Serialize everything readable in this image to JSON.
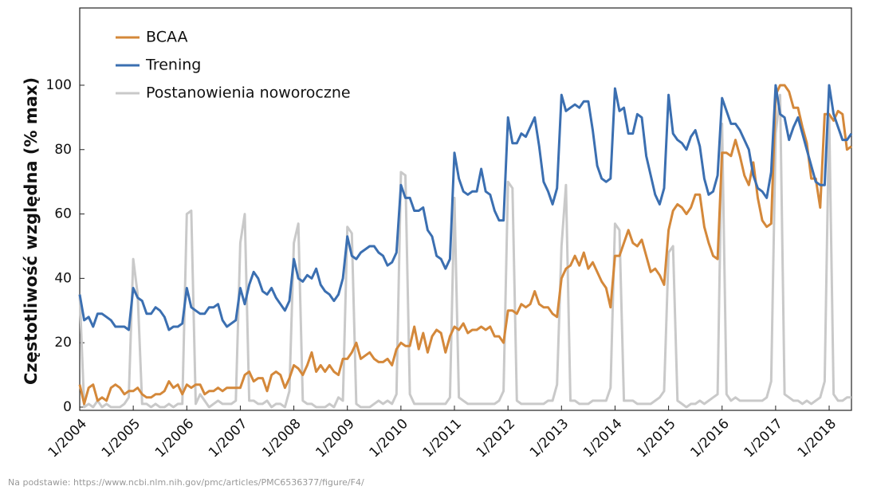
{
  "chart_data": {
    "type": "line",
    "y_label": "Częstotliwość względna (% max)",
    "source": "Na podstawie: https://www.ncbi.nlm.nih.gov/pmc/articles/PMC6536377/figure/F4/",
    "legend": "upper-left",
    "grid": false,
    "xlim": [
      "2004-01",
      "2018-06"
    ],
    "ylim": [
      -1,
      124
    ],
    "yticks": [
      0,
      20,
      40,
      60,
      80,
      100
    ],
    "xticks": [
      {
        "value": "2004-01",
        "label": "1/2004"
      },
      {
        "value": "2005-01",
        "label": "1/2005"
      },
      {
        "value": "2006-01",
        "label": "1/2006"
      },
      {
        "value": "2007-01",
        "label": "1/2007"
      },
      {
        "value": "2008-01",
        "label": "1/2008"
      },
      {
        "value": "2009-01",
        "label": "1/2009"
      },
      {
        "value": "2010-01",
        "label": "1/2010"
      },
      {
        "value": "2011-01",
        "label": "1/2011"
      },
      {
        "value": "2012-01",
        "label": "1/2012"
      },
      {
        "value": "2013-01",
        "label": "1/2013"
      },
      {
        "value": "2014-01",
        "label": "1/2014"
      },
      {
        "value": "2015-01",
        "label": "1/2015"
      },
      {
        "value": "2016-01",
        "label": "1/2016"
      },
      {
        "value": "2017-01",
        "label": "1/2017"
      },
      {
        "value": "2018-01",
        "label": "1/2018"
      }
    ],
    "x": [
      "2004-01",
      "2004-02",
      "2004-03",
      "2004-04",
      "2004-05",
      "2004-06",
      "2004-07",
      "2004-08",
      "2004-09",
      "2004-10",
      "2004-11",
      "2004-12",
      "2005-01",
      "2005-02",
      "2005-03",
      "2005-04",
      "2005-05",
      "2005-06",
      "2005-07",
      "2005-08",
      "2005-09",
      "2005-10",
      "2005-11",
      "2005-12",
      "2006-01",
      "2006-02",
      "2006-03",
      "2006-04",
      "2006-05",
      "2006-06",
      "2006-07",
      "2006-08",
      "2006-09",
      "2006-10",
      "2006-11",
      "2006-12",
      "2007-01",
      "2007-02",
      "2007-03",
      "2007-04",
      "2007-05",
      "2007-06",
      "2007-07",
      "2007-08",
      "2007-09",
      "2007-10",
      "2007-11",
      "2007-12",
      "2008-01",
      "2008-02",
      "2008-03",
      "2008-04",
      "2008-05",
      "2008-06",
      "2008-07",
      "2008-08",
      "2008-09",
      "2008-10",
      "2008-11",
      "2008-12",
      "2009-01",
      "2009-02",
      "2009-03",
      "2009-04",
      "2009-05",
      "2009-06",
      "2009-07",
      "2009-08",
      "2009-09",
      "2009-10",
      "2009-11",
      "2009-12",
      "2010-01",
      "2010-02",
      "2010-03",
      "2010-04",
      "2010-05",
      "2010-06",
      "2010-07",
      "2010-08",
      "2010-09",
      "2010-10",
      "2010-11",
      "2010-12",
      "2011-01",
      "2011-02",
      "2011-03",
      "2011-04",
      "2011-05",
      "2011-06",
      "2011-07",
      "2011-08",
      "2011-09",
      "2011-10",
      "2011-11",
      "2011-12",
      "2012-01",
      "2012-02",
      "2012-03",
      "2012-04",
      "2012-05",
      "2012-06",
      "2012-07",
      "2012-08",
      "2012-09",
      "2012-10",
      "2012-11",
      "2012-12",
      "2013-01",
      "2013-02",
      "2013-03",
      "2013-04",
      "2013-05",
      "2013-06",
      "2013-07",
      "2013-08",
      "2013-09",
      "2013-10",
      "2013-11",
      "2013-12",
      "2014-01",
      "2014-02",
      "2014-03",
      "2014-04",
      "2014-05",
      "2014-06",
      "2014-07",
      "2014-08",
      "2014-09",
      "2014-10",
      "2014-11",
      "2014-12",
      "2015-01",
      "2015-02",
      "2015-03",
      "2015-04",
      "2015-05",
      "2015-06",
      "2015-07",
      "2015-08",
      "2015-09",
      "2015-10",
      "2015-11",
      "2015-12",
      "2016-01",
      "2016-02",
      "2016-03",
      "2016-04",
      "2016-05",
      "2016-06",
      "2016-07",
      "2016-08",
      "2016-09",
      "2016-10",
      "2016-11",
      "2016-12",
      "2017-01",
      "2017-02",
      "2017-03",
      "2017-04",
      "2017-05",
      "2017-06",
      "2017-07",
      "2017-08",
      "2017-09",
      "2017-10",
      "2017-11",
      "2017-12",
      "2018-01",
      "2018-02",
      "2018-03",
      "2018-04",
      "2018-05",
      "2018-06"
    ],
    "series": [
      {
        "name": "Postanowienia noworoczne",
        "color": "#c9c9c9",
        "values": [
          35,
          0,
          1,
          0,
          2,
          0,
          1,
          0,
          0,
          0,
          1,
          3,
          46,
          35,
          1,
          1,
          0,
          1,
          0,
          0,
          1,
          0,
          1,
          1,
          60,
          61,
          1,
          4,
          2,
          0,
          1,
          2,
          1,
          1,
          1,
          2,
          51,
          60,
          2,
          2,
          1,
          1,
          2,
          0,
          1,
          1,
          0,
          5,
          51,
          57,
          2,
          1,
          1,
          0,
          0,
          0,
          1,
          0,
          3,
          2,
          56,
          54,
          1,
          0,
          0,
          0,
          1,
          2,
          1,
          2,
          1,
          4,
          73,
          72,
          4,
          1,
          1,
          1,
          1,
          1,
          1,
          1,
          1,
          3,
          65,
          3,
          2,
          1,
          1,
          1,
          1,
          1,
          1,
          1,
          2,
          5,
          70,
          68,
          2,
          1,
          1,
          1,
          1,
          1,
          1,
          2,
          2,
          7,
          50,
          69,
          2,
          2,
          1,
          1,
          1,
          2,
          2,
          2,
          2,
          6,
          57,
          55,
          2,
          2,
          2,
          1,
          1,
          1,
          1,
          2,
          3,
          5,
          48,
          50,
          2,
          1,
          0,
          1,
          1,
          2,
          1,
          2,
          3,
          4,
          88,
          4,
          2,
          3,
          2,
          2,
          2,
          2,
          2,
          2,
          3,
          8,
          85,
          97,
          4,
          3,
          2,
          2,
          1,
          2,
          1,
          2,
          3,
          8,
          91,
          4,
          2,
          2,
          3,
          3
        ]
      },
      {
        "name": "BCAA",
        "color": "#d4883a",
        "values": [
          7,
          1,
          6,
          7,
          2,
          3,
          2,
          6,
          7,
          6,
          4,
          5,
          5,
          6,
          4,
          3,
          3,
          4,
          4,
          5,
          8,
          6,
          7,
          4,
          7,
          6,
          7,
          7,
          4,
          5,
          5,
          6,
          5,
          6,
          6,
          6,
          6,
          10,
          11,
          8,
          9,
          9,
          5,
          10,
          11,
          10,
          6,
          9,
          13,
          12,
          10,
          13,
          17,
          11,
          13,
          11,
          13,
          11,
          10,
          15,
          15,
          17,
          20,
          15,
          16,
          17,
          15,
          14,
          14,
          15,
          13,
          18,
          20,
          19,
          19,
          25,
          18,
          23,
          17,
          22,
          24,
          23,
          17,
          22,
          25,
          24,
          26,
          23,
          24,
          24,
          25,
          24,
          25,
          22,
          22,
          20,
          30,
          30,
          29,
          32,
          31,
          32,
          36,
          32,
          31,
          31,
          29,
          28,
          40,
          43,
          44,
          47,
          44,
          48,
          43,
          45,
          42,
          39,
          37,
          31,
          47,
          47,
          51,
          55,
          51,
          50,
          52,
          47,
          42,
          43,
          41,
          38,
          55,
          61,
          63,
          62,
          60,
          62,
          66,
          66,
          56,
          51,
          47,
          46,
          79,
          79,
          78,
          83,
          78,
          72,
          69,
          76,
          65,
          58,
          56,
          57,
          97,
          100,
          100,
          98,
          93,
          93,
          87,
          82,
          71,
          71,
          62,
          91,
          91,
          89,
          92,
          91,
          80,
          81
        ]
      },
      {
        "name": "Trening",
        "color": "#3b6fb1",
        "values": [
          35,
          27,
          28,
          25,
          29,
          29,
          28,
          27,
          25,
          25,
          25,
          24,
          37,
          34,
          33,
          29,
          29,
          31,
          30,
          28,
          24,
          25,
          25,
          26,
          37,
          31,
          30,
          29,
          29,
          31,
          31,
          32,
          27,
          25,
          26,
          27,
          37,
          32,
          38,
          42,
          40,
          36,
          35,
          37,
          34,
          32,
          30,
          33,
          46,
          40,
          39,
          41,
          40,
          43,
          38,
          36,
          35,
          33,
          35,
          40,
          53,
          47,
          46,
          48,
          49,
          50,
          50,
          48,
          47,
          44,
          45,
          48,
          69,
          65,
          65,
          61,
          61,
          62,
          55,
          53,
          47,
          46,
          43,
          46,
          79,
          71,
          67,
          66,
          67,
          67,
          74,
          67,
          66,
          61,
          58,
          58,
          90,
          82,
          82,
          85,
          84,
          87,
          90,
          81,
          70,
          67,
          63,
          68,
          97,
          92,
          93,
          94,
          93,
          95,
          95,
          86,
          75,
          71,
          70,
          71,
          99,
          92,
          93,
          85,
          85,
          91,
          90,
          78,
          72,
          66,
          63,
          68,
          97,
          85,
          83,
          82,
          80,
          84,
          86,
          81,
          71,
          66,
          67,
          72,
          96,
          92,
          88,
          88,
          86,
          83,
          80,
          72,
          68,
          67,
          65,
          73,
          100,
          91,
          90,
          83,
          87,
          90,
          85,
          80,
          75,
          70,
          69,
          69,
          100,
          91,
          87,
          83,
          83,
          85
        ]
      }
    ]
  }
}
